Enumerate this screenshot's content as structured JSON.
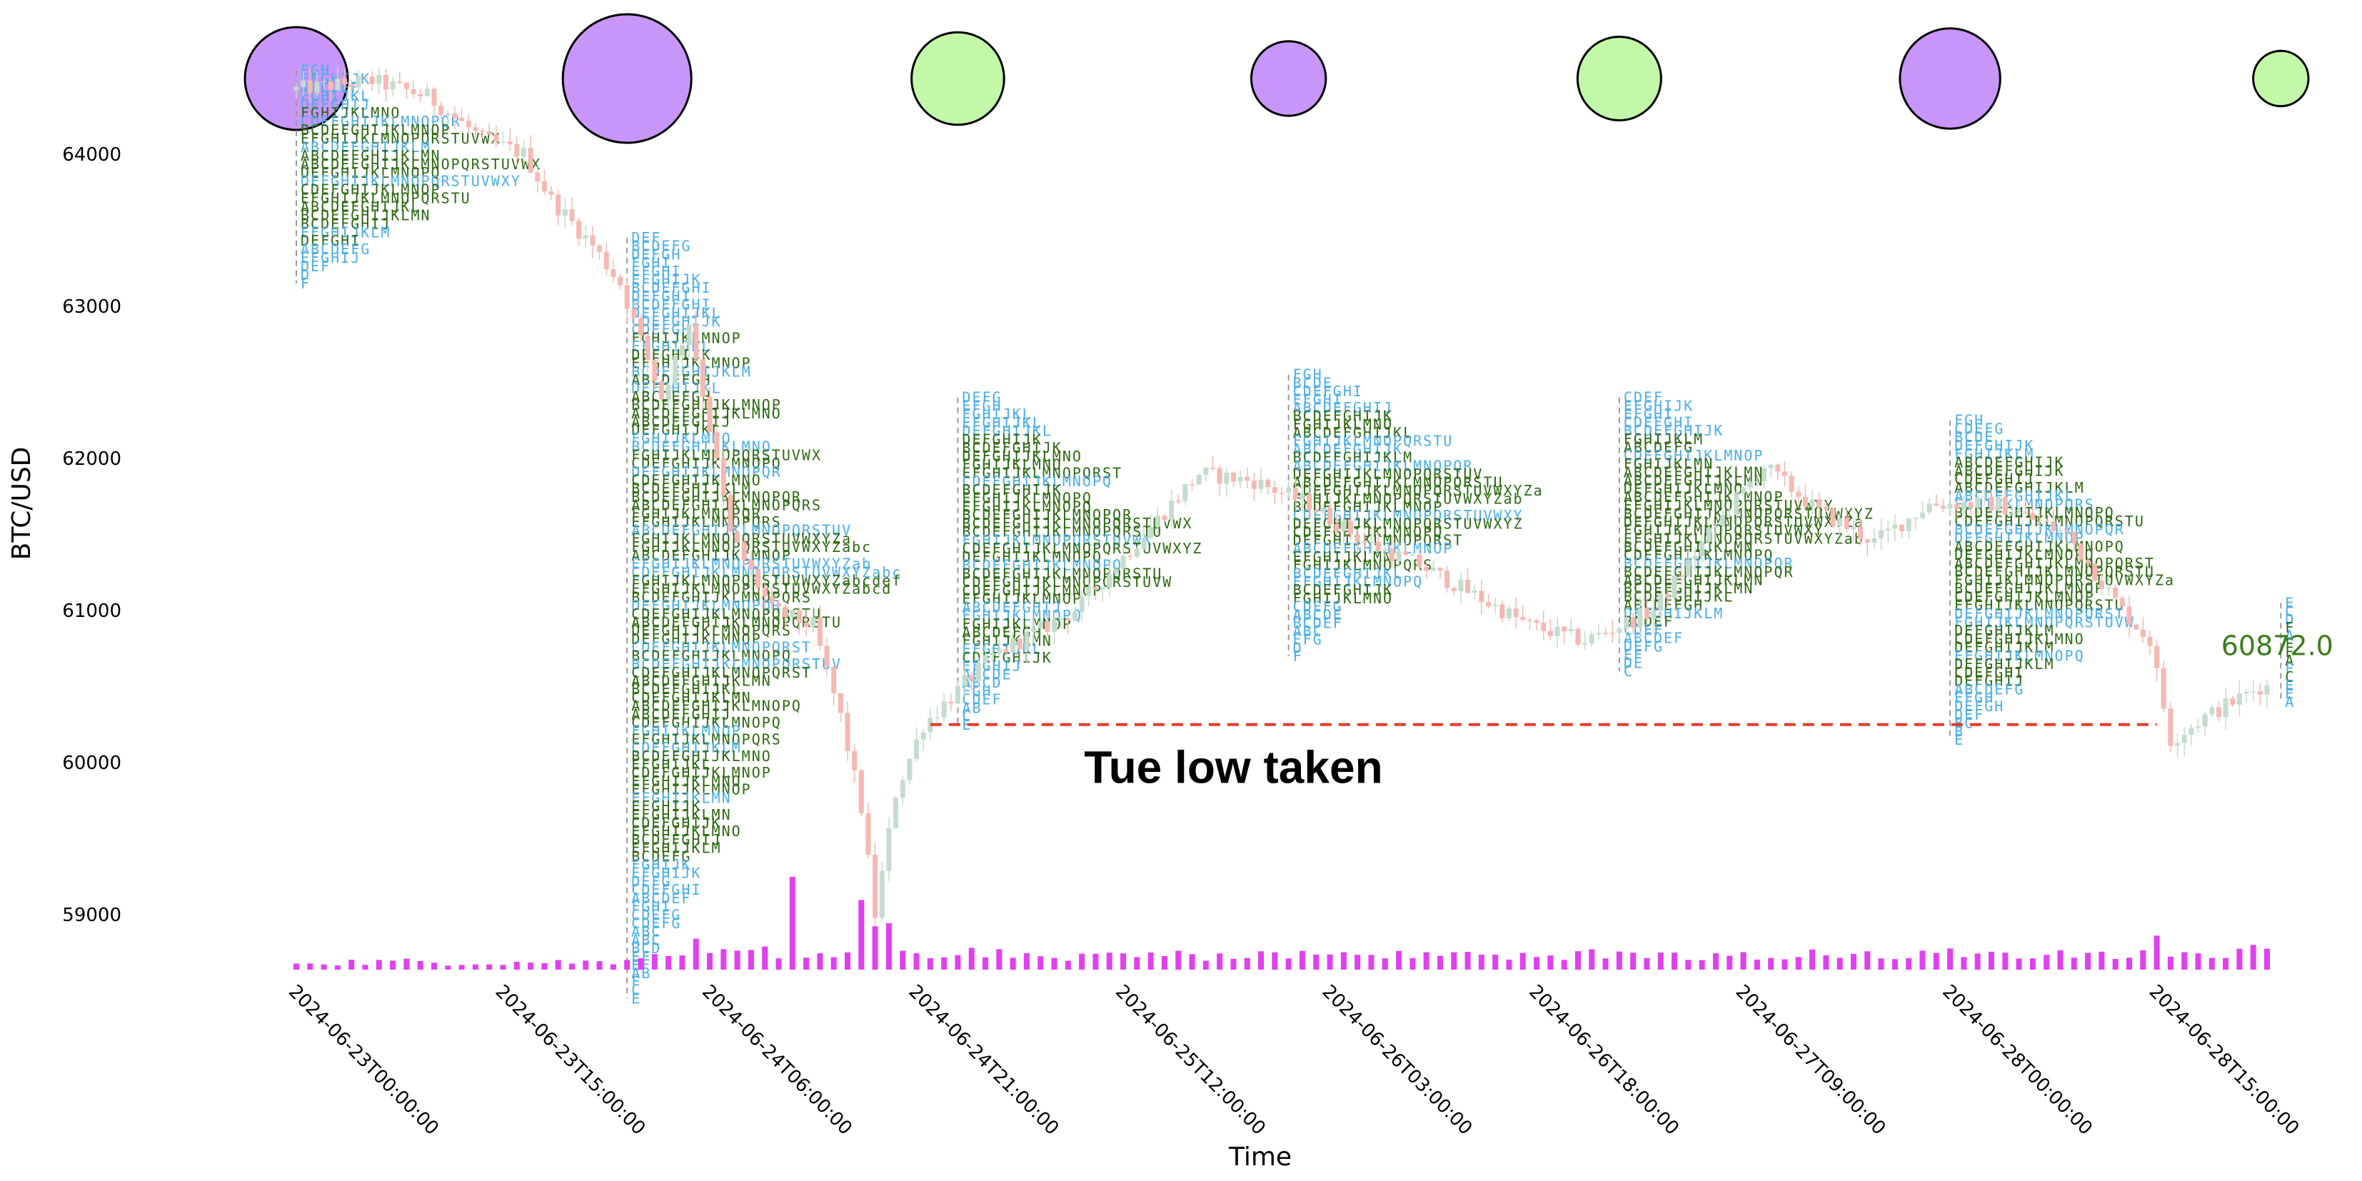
{
  "chart_data": {
    "type": "line",
    "chart_kind": "candlestick with TPO market profile and volume",
    "xlabel": "Time",
    "ylabel": "BTC/USD",
    "ylim": [
      58400,
      64900
    ],
    "y_ticks": [
      59000,
      60000,
      61000,
      62000,
      63000,
      64000
    ],
    "x_start": "2024-06-23T00:00:00",
    "x_end": "2024-06-28T23:00:00",
    "x_ticks": [
      "2024-06-23T00:00:00",
      "2024-06-23T15:00:00",
      "2024-06-24T06:00:00",
      "2024-06-24T21:00:00",
      "2024-06-25T12:00:00",
      "2024-06-26T03:00:00",
      "2024-06-26T18:00:00",
      "2024-06-27T09:00:00",
      "2024-06-28T00:00:00",
      "2024-06-28T15:00:00"
    ],
    "grid": false,
    "close_path": [
      {
        "t": "2024-06-23T00:00",
        "p": 64420
      },
      {
        "t": "2024-06-23T06:00",
        "p": 64480
      },
      {
        "t": "2024-06-23T10:00",
        "p": 64380
      },
      {
        "t": "2024-06-23T14:00",
        "p": 64100
      },
      {
        "t": "2024-06-23T17:00",
        "p": 64000
      },
      {
        "t": "2024-06-23T19:00",
        "p": 63700
      },
      {
        "t": "2024-06-23T22:00",
        "p": 63400
      },
      {
        "t": "2024-06-24T00:00",
        "p": 63150
      },
      {
        "t": "2024-06-24T03:00",
        "p": 62400
      },
      {
        "t": "2024-06-24T05:00",
        "p": 62900
      },
      {
        "t": "2024-06-24T08:00",
        "p": 61500
      },
      {
        "t": "2024-06-24T11:00",
        "p": 61000
      },
      {
        "t": "2024-06-24T14:00",
        "p": 60900
      },
      {
        "t": "2024-06-24T16:00",
        "p": 60300
      },
      {
        "t": "2024-06-24T17:30",
        "p": 59700
      },
      {
        "t": "2024-06-24T18:30",
        "p": 59000
      },
      {
        "t": "2024-06-24T20:00",
        "p": 59800
      },
      {
        "t": "2024-06-24T22:00",
        "p": 60250
      },
      {
        "t": "2024-06-25T03:00",
        "p": 60700
      },
      {
        "t": "2024-06-25T09:00",
        "p": 61000
      },
      {
        "t": "2024-06-25T14:00",
        "p": 61500
      },
      {
        "t": "2024-06-25T18:00",
        "p": 61900
      },
      {
        "t": "2024-06-25T22:00",
        "p": 61850
      },
      {
        "t": "2024-06-26T02:00",
        "p": 61700
      },
      {
        "t": "2024-06-26T06:00",
        "p": 61450
      },
      {
        "t": "2024-06-26T10:00",
        "p": 61300
      },
      {
        "t": "2024-06-26T14:00",
        "p": 61100
      },
      {
        "t": "2024-06-26T18:00",
        "p": 60900
      },
      {
        "t": "2024-06-26T22:00",
        "p": 60800
      },
      {
        "t": "2024-06-27T03:00",
        "p": 61000
      },
      {
        "t": "2024-06-27T07:00",
        "p": 61500
      },
      {
        "t": "2024-06-27T11:00",
        "p": 61950
      },
      {
        "t": "2024-06-27T15:00",
        "p": 61650
      },
      {
        "t": "2024-06-27T19:00",
        "p": 61450
      },
      {
        "t": "2024-06-27T23:00",
        "p": 61700
      },
      {
        "t": "2024-06-28T04:00",
        "p": 61700
      },
      {
        "t": "2024-06-28T09:00",
        "p": 61500
      },
      {
        "t": "2024-06-28T13:00",
        "p": 61000
      },
      {
        "t": "2024-06-28T15:00",
        "p": 60800
      },
      {
        "t": "2024-06-28T16:30",
        "p": 60150
      },
      {
        "t": "2024-06-28T19:00",
        "p": 60300
      },
      {
        "t": "2024-06-28T23:00",
        "p": 60500
      }
    ],
    "volume_spikes": [
      {
        "t": "2024-06-24T05:00",
        "level": 0.2
      },
      {
        "t": "2024-06-24T10:00",
        "level": 0.15
      },
      {
        "t": "2024-06-24T12:00",
        "level": 0.6
      },
      {
        "t": "2024-06-24T17:00",
        "level": 0.45
      },
      {
        "t": "2024-06-24T18:00",
        "level": 0.28
      },
      {
        "t": "2024-06-24T19:00",
        "level": 0.3
      },
      {
        "t": "2024-06-28T15:00",
        "level": 0.22
      },
      {
        "t": "2024-06-28T22:00",
        "level": 0.16
      }
    ],
    "day_bubbles": [
      {
        "t": "2024-06-23T00:00",
        "size": 0.8,
        "color": "#c896f8"
      },
      {
        "t": "2024-06-24T00:00",
        "size": 1.0,
        "color": "#c896f8"
      },
      {
        "t": "2024-06-25T00:00",
        "size": 0.72,
        "color": "#c2f8a8"
      },
      {
        "t": "2024-06-26T00:00",
        "size": 0.58,
        "color": "#c896f8"
      },
      {
        "t": "2024-06-27T00:00",
        "size": 0.65,
        "color": "#c2f8a8"
      },
      {
        "t": "2024-06-28T00:00",
        "size": 0.78,
        "color": "#c896f8"
      },
      {
        "t": "2024-06-29T00:00",
        "size": 0.43,
        "color": "#c2f8a8"
      }
    ],
    "tpo_profiles": [
      {
        "day_start": "2024-06-23T00:00",
        "high": 64550,
        "low": 63150
      },
      {
        "day_start": "2024-06-24T00:00",
        "high": 63450,
        "low": 58450
      },
      {
        "day_start": "2024-06-25T00:00",
        "high": 62400,
        "low": 60250
      },
      {
        "day_start": "2024-06-26T00:00",
        "high": 62550,
        "low": 60700
      },
      {
        "day_start": "2024-06-27T00:00",
        "high": 62400,
        "low": 60600
      },
      {
        "day_start": "2024-06-28T00:00",
        "high": 62250,
        "low": 60150
      },
      {
        "day_start": "2024-06-29T00:00",
        "high": 61050,
        "low": 60400
      }
    ],
    "tue_low_line": {
      "price": 60250,
      "from": "2024-06-24T22:00",
      "to": "2024-06-28T15:00"
    },
    "annotations": [
      {
        "text": "Tue low taken",
        "t": "2024-06-25T20:00",
        "price": 59970
      },
      {
        "text": "60872.0",
        "t": "2024-06-29T00:00",
        "price": 60800
      }
    ],
    "colors": {
      "up_candle": "#c4dccd",
      "down_candle": "#f6b8b2",
      "volume": "#e040f0",
      "tpo_green": "#2d6a12",
      "tpo_blue": "#4aaee8",
      "tue_low_line": "#e8392c"
    }
  }
}
